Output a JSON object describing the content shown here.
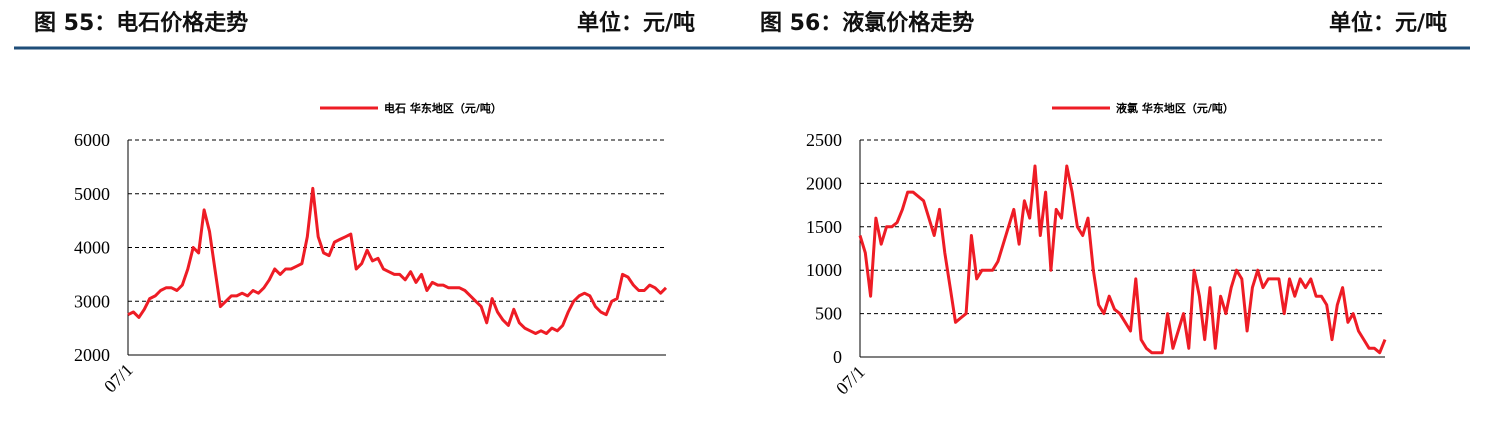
{
  "chart_data": [
    {
      "type": "line",
      "title": "图 55：电石价格走势",
      "subtitle": "单位：元/吨",
      "categories": [
        "07/1",
        null,
        null,
        null,
        null,
        null,
        null,
        null,
        null,
        null,
        null,
        null,
        null,
        null,
        null,
        null,
        null,
        null,
        null,
        null,
        null,
        null,
        null,
        null,
        null,
        null,
        null,
        null,
        null,
        null,
        null,
        null,
        null,
        null,
        null,
        null,
        null,
        null,
        null,
        null,
        null,
        null,
        null,
        null,
        null,
        null,
        null,
        null,
        null,
        null,
        null,
        null,
        null,
        null,
        null,
        null,
        null,
        null,
        null,
        null,
        null,
        null,
        null,
        null,
        null,
        null,
        null,
        null,
        null,
        null,
        null,
        null,
        null,
        null,
        null,
        null,
        null,
        null,
        null,
        null,
        null,
        null,
        null,
        null,
        null,
        null,
        null,
        null,
        null,
        null,
        null,
        null,
        null,
        null,
        null,
        null,
        null,
        null,
        null,
        null
      ],
      "series": [
        {
          "name": "电石 华东地区（元/吨）",
          "color": "#ee1c25",
          "values": [
            2750,
            2800,
            2700,
            2850,
            3050,
            3100,
            3200,
            3250,
            3250,
            3200,
            3300,
            3600,
            4000,
            3900,
            4700,
            4300,
            3600,
            2900,
            3000,
            3100,
            3100,
            3150,
            3100,
            3200,
            3150,
            3250,
            3400,
            3600,
            3500,
            3600,
            3600,
            3650,
            3700,
            4200,
            5100,
            4200,
            3900,
            3850,
            4100,
            4150,
            4200,
            4250,
            3600,
            3700,
            3950,
            3750,
            3800,
            3600,
            3550,
            3500,
            3500,
            3400,
            3550,
            3350,
            3500,
            3200,
            3350,
            3300,
            3300,
            3250,
            3250,
            3250,
            3200,
            3100,
            3000,
            2900,
            2600,
            3050,
            2800,
            2650,
            2550,
            2850,
            2600,
            2500,
            2450,
            2400,
            2450,
            2400,
            2500,
            2450,
            2550,
            2800,
            3000,
            3100,
            3150,
            3100,
            2900,
            2800,
            2750,
            3000,
            3050,
            3500,
            3450,
            3300,
            3200,
            3200,
            3300,
            3250,
            3150,
            3250
          ]
        }
      ],
      "ylim": [
        2000,
        6000
      ],
      "yticks": [
        2000,
        3000,
        4000,
        5000,
        6000
      ],
      "grid": true
    },
    {
      "type": "line",
      "title": "图 56：液氯价格走势",
      "subtitle": "单位：元/吨",
      "categories": [
        "07/1",
        null,
        null,
        null,
        null,
        null,
        null,
        null,
        null,
        null,
        null,
        null,
        null,
        null,
        null,
        null,
        null,
        null,
        null,
        null,
        null,
        null,
        null,
        null,
        null,
        null,
        null,
        null,
        null,
        null,
        null,
        null,
        null,
        null,
        null,
        null,
        null,
        null,
        null,
        null,
        null,
        null,
        null,
        null,
        null,
        null,
        null,
        null,
        null,
        null,
        null,
        null,
        null,
        null,
        null,
        null,
        null,
        null,
        null,
        null,
        null,
        null,
        null,
        null,
        null,
        null,
        null,
        null,
        null,
        null,
        null,
        null,
        null,
        null,
        null,
        null,
        null,
        null,
        null,
        null,
        null,
        null,
        null,
        null,
        null,
        null,
        null,
        null,
        null,
        null,
        null,
        null,
        null,
        null,
        null,
        null,
        null,
        null,
        null,
        null
      ],
      "series": [
        {
          "name": "液氯 华东地区（元/吨）",
          "color": "#ee1c25",
          "values": [
            1400,
            1200,
            700,
            1600,
            1300,
            1500,
            1500,
            1550,
            1700,
            1900,
            1900,
            1850,
            1800,
            1600,
            1400,
            1700,
            1200,
            800,
            400,
            450,
            500,
            1400,
            900,
            1000,
            1000,
            1000,
            1100,
            1300,
            1500,
            1700,
            1300,
            1800,
            1600,
            2200,
            1400,
            1900,
            1000,
            1700,
            1600,
            2200,
            1900,
            1500,
            1400,
            1600,
            1000,
            600,
            500,
            700,
            550,
            500,
            400,
            300,
            900,
            200,
            100,
            50,
            50,
            50,
            500,
            100,
            300,
            500,
            100,
            1000,
            700,
            200,
            800,
            100,
            700,
            500,
            800,
            1000,
            900,
            300,
            800,
            1000,
            800,
            900,
            900,
            900,
            500,
            900,
            700,
            900,
            800,
            900,
            700,
            700,
            600,
            200,
            600,
            800,
            400,
            500,
            300,
            200,
            100,
            100,
            50,
            200
          ]
        }
      ],
      "ylim": [
        0,
        2500
      ],
      "yticks": [
        0,
        500,
        1000,
        1500,
        2000,
        2500
      ],
      "grid": true
    }
  ]
}
